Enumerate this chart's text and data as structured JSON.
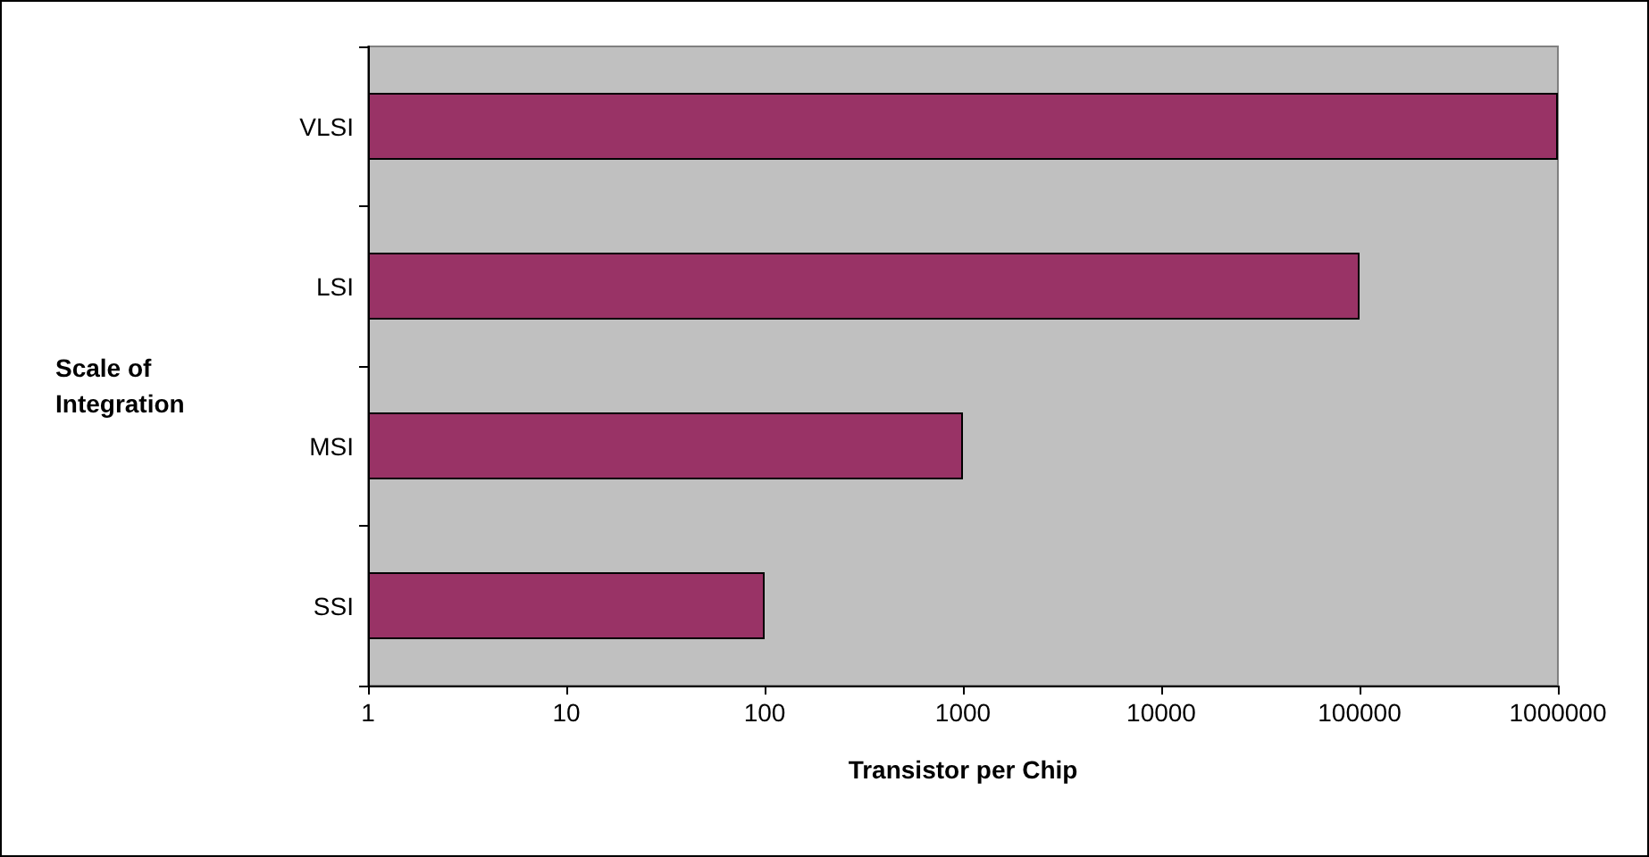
{
  "chart_data": {
    "type": "bar",
    "orientation": "horizontal",
    "xlabel": "Transistor per Chip",
    "ylabel": "Scale of Integration",
    "categories": [
      "VLSI",
      "LSI",
      "MSI",
      "SSI"
    ],
    "values": [
      1000000,
      100000,
      1000,
      100
    ],
    "color": "#993366",
    "log": "x",
    "xlim": [
      1,
      1000000
    ],
    "xticks": [
      1,
      10,
      100,
      1000,
      10000,
      100000,
      1000000
    ],
    "grid": false
  }
}
